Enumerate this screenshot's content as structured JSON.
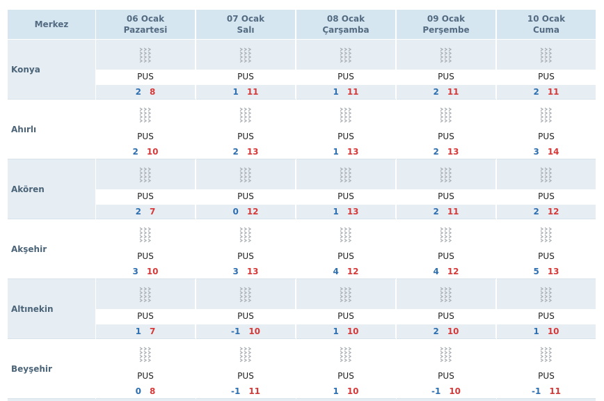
{
  "header": {
    "name_col": "Merkez",
    "days": [
      {
        "date": "06 Ocak",
        "weekday": "Pazartesi"
      },
      {
        "date": "07 Ocak",
        "weekday": "Salı"
      },
      {
        "date": "08 Ocak",
        "weekday": "Çarşamba"
      },
      {
        "date": "09 Ocak",
        "weekday": "Perşembe"
      },
      {
        "date": "10 Ocak",
        "weekday": "Cuma"
      }
    ]
  },
  "icon": "fog-icon",
  "colors": {
    "header_bg": "#d6e6f1",
    "shade": "#e6eef4",
    "min_temp": "#2e6fb0",
    "max_temp": "#d43a3a"
  },
  "rows": [
    {
      "name": "Konya",
      "forecasts": [
        {
          "cond": "PUS",
          "min": "2",
          "max": "8"
        },
        {
          "cond": "PUS",
          "min": "1",
          "max": "11"
        },
        {
          "cond": "PUS",
          "min": "1",
          "max": "11"
        },
        {
          "cond": "PUS",
          "min": "2",
          "max": "11"
        },
        {
          "cond": "PUS",
          "min": "2",
          "max": "11"
        }
      ]
    },
    {
      "name": "Ahırlı",
      "forecasts": [
        {
          "cond": "PUS",
          "min": "2",
          "max": "10"
        },
        {
          "cond": "PUS",
          "min": "2",
          "max": "13"
        },
        {
          "cond": "PUS",
          "min": "1",
          "max": "13"
        },
        {
          "cond": "PUS",
          "min": "2",
          "max": "13"
        },
        {
          "cond": "PUS",
          "min": "3",
          "max": "14"
        }
      ]
    },
    {
      "name": "Akören",
      "forecasts": [
        {
          "cond": "PUS",
          "min": "2",
          "max": "7"
        },
        {
          "cond": "PUS",
          "min": "0",
          "max": "12"
        },
        {
          "cond": "PUS",
          "min": "1",
          "max": "13"
        },
        {
          "cond": "PUS",
          "min": "2",
          "max": "11"
        },
        {
          "cond": "PUS",
          "min": "2",
          "max": "12"
        }
      ]
    },
    {
      "name": "Akşehir",
      "forecasts": [
        {
          "cond": "PUS",
          "min": "3",
          "max": "10"
        },
        {
          "cond": "PUS",
          "min": "3",
          "max": "13"
        },
        {
          "cond": "PUS",
          "min": "4",
          "max": "12"
        },
        {
          "cond": "PUS",
          "min": "4",
          "max": "12"
        },
        {
          "cond": "PUS",
          "min": "5",
          "max": "13"
        }
      ]
    },
    {
      "name": "Altınekin",
      "forecasts": [
        {
          "cond": "PUS",
          "min": "1",
          "max": "7"
        },
        {
          "cond": "PUS",
          "min": "-1",
          "max": "10"
        },
        {
          "cond": "PUS",
          "min": "1",
          "max": "10"
        },
        {
          "cond": "PUS",
          "min": "2",
          "max": "10"
        },
        {
          "cond": "PUS",
          "min": "1",
          "max": "10"
        }
      ]
    },
    {
      "name": "Beyşehir",
      "forecasts": [
        {
          "cond": "PUS",
          "min": "0",
          "max": "8"
        },
        {
          "cond": "PUS",
          "min": "-1",
          "max": "11"
        },
        {
          "cond": "PUS",
          "min": "1",
          "max": "10"
        },
        {
          "cond": "PUS",
          "min": "-1",
          "max": "10"
        },
        {
          "cond": "PUS",
          "min": "-1",
          "max": "11"
        }
      ]
    }
  ]
}
